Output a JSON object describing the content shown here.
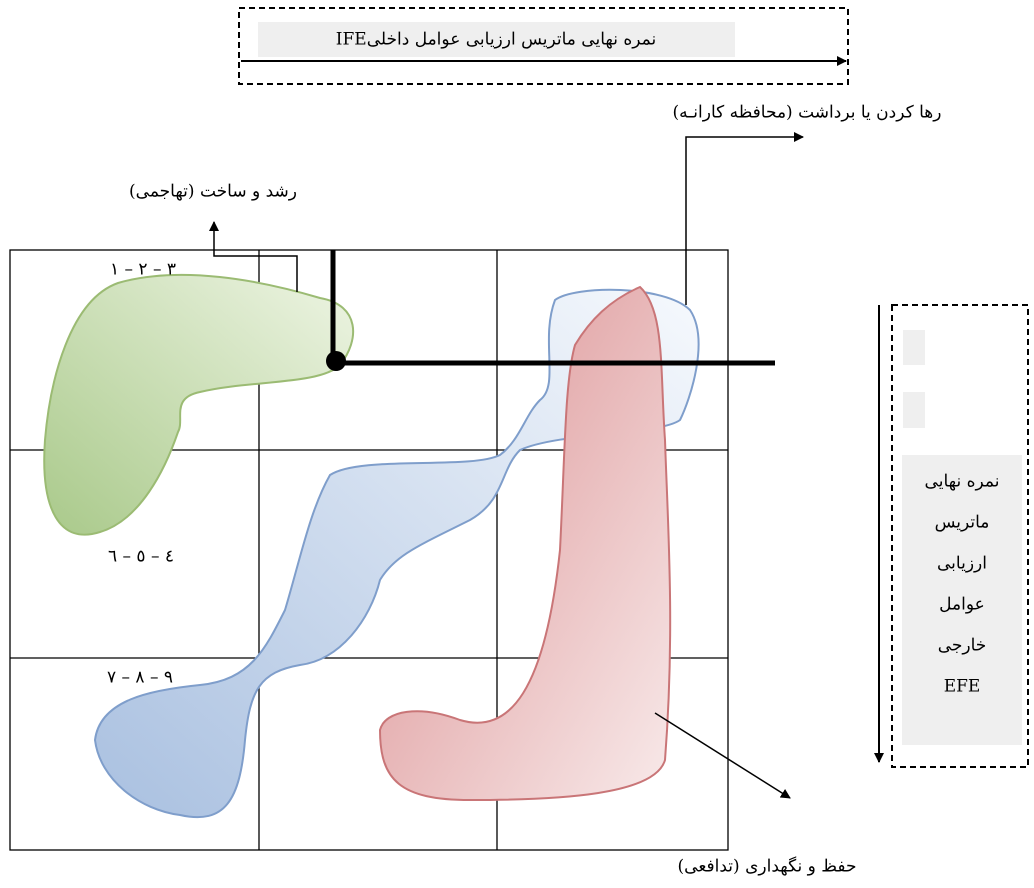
{
  "ife_box": {
    "label": "نمره نهایی ماتریس ارزیابی عوامل داخلیIFE"
  },
  "efe_box": {
    "lines": [
      "نمره نهایی",
      "ماتریس",
      "ارزیابی",
      "عوامل",
      "خارجی",
      "EFE"
    ]
  },
  "regions": {
    "grow_build": "رشد و ساخت (تهاجمی)",
    "harvest_divest": "رها کردن یا برداشت (محافظه کارانـه)",
    "hold_maintain": "حفظ و نگهداری (تدافعی)"
  },
  "cells": {
    "row1": "۱ – ۲ – ۳",
    "row2": "٤ – ٥ – ٦",
    "row3": "۷ – ۸ – ۹"
  }
}
